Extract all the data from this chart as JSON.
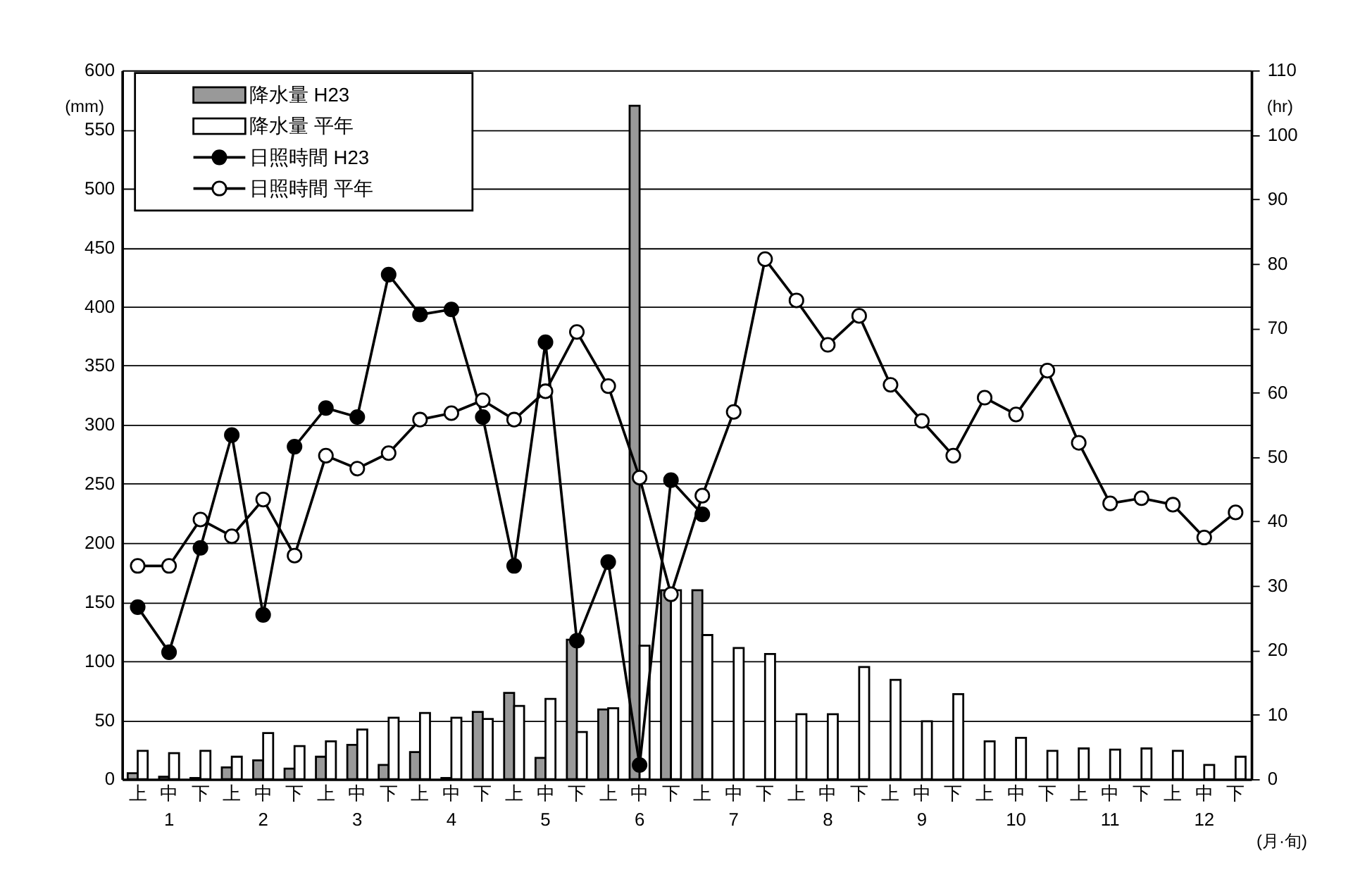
{
  "chart_data": {
    "type": "bar",
    "xlabel": "(月·旬)",
    "ylabel": "(mm)",
    "y2label": "(hr)",
    "categories": [
      "上",
      "中\n1",
      "下",
      "上",
      "中\n2",
      "下",
      "上",
      "中\n3",
      "下",
      "上",
      "中\n4",
      "下",
      "上",
      "中\n5",
      "下",
      "上",
      "中\n6",
      "下",
      "上",
      "中\n7",
      "下",
      "上",
      "中\n8",
      "下",
      "上",
      "中\n9",
      "下",
      "上",
      "中\n10",
      "下",
      "上",
      "中\n11",
      "下",
      "上",
      "中\n12",
      "下"
    ],
    "series": [
      {
        "name": "降水量 H23",
        "color": "#999999",
        "values": [
          5,
          2,
          1,
          10,
          16,
          9,
          19,
          29,
          12,
          23,
          1,
          57,
          73,
          18,
          118,
          59,
          570,
          160,
          160,
          null,
          null,
          null,
          null,
          null,
          null,
          null,
          null,
          null,
          null,
          null,
          null,
          null,
          null,
          null,
          null,
          null
        ]
      },
      {
        "name": "降水量 平年",
        "color": "#ffffff",
        "values": [
          24,
          22,
          24,
          19,
          39,
          28,
          32,
          42,
          52,
          56,
          52,
          51,
          62,
          68,
          40,
          60,
          113,
          160,
          122,
          111,
          106,
          55,
          55,
          95,
          84,
          49,
          72,
          32,
          35,
          24,
          26,
          25,
          26,
          24,
          12,
          19
        ]
      },
      {
        "name": "日照時間 H23",
        "type": "line",
        "axis": "y2",
        "color": "#000000",
        "marker": "circle",
        "values": [
          26.7,
          19.7,
          35.9,
          53.4,
          25.5,
          51.6,
          57.6,
          56.2,
          78.3,
          72.1,
          72.9,
          56.2,
          33.1,
          67.8,
          21.5,
          33.7,
          2.2,
          46.4,
          41.1,
          null,
          null,
          null,
          null,
          null,
          null,
          null,
          null,
          null,
          null,
          null,
          null,
          null,
          null,
          null,
          null,
          null
        ]
      },
      {
        "name": "日照時間 平年",
        "type": "line",
        "axis": "y2",
        "color": "#ffffff",
        "marker": "circle",
        "values": [
          33.1,
          33.1,
          40.3,
          37.7,
          43.4,
          34.7,
          50.2,
          48.2,
          50.6,
          55.8,
          56.8,
          58.8,
          55.8,
          60.2,
          69.4,
          61.0,
          46.8,
          28.7,
          44.0,
          57.0,
          80.7,
          74.3,
          67.4,
          71.9,
          61.2,
          55.6,
          50.2,
          59.2,
          56.6,
          63.4,
          52.2,
          42.8,
          43.6,
          42.6,
          37.5,
          41.4
        ]
      }
    ],
    "ylim": [
      0,
      600
    ],
    "yticks": [
      0,
      50,
      100,
      150,
      200,
      250,
      300,
      350,
      400,
      450,
      500,
      550,
      600
    ],
    "y2lim": [
      0,
      110
    ],
    "y2ticks": [
      0,
      10,
      20,
      30,
      40,
      50,
      60,
      70,
      80,
      90,
      100,
      110
    ],
    "grid": "y",
    "legend": "top left"
  }
}
